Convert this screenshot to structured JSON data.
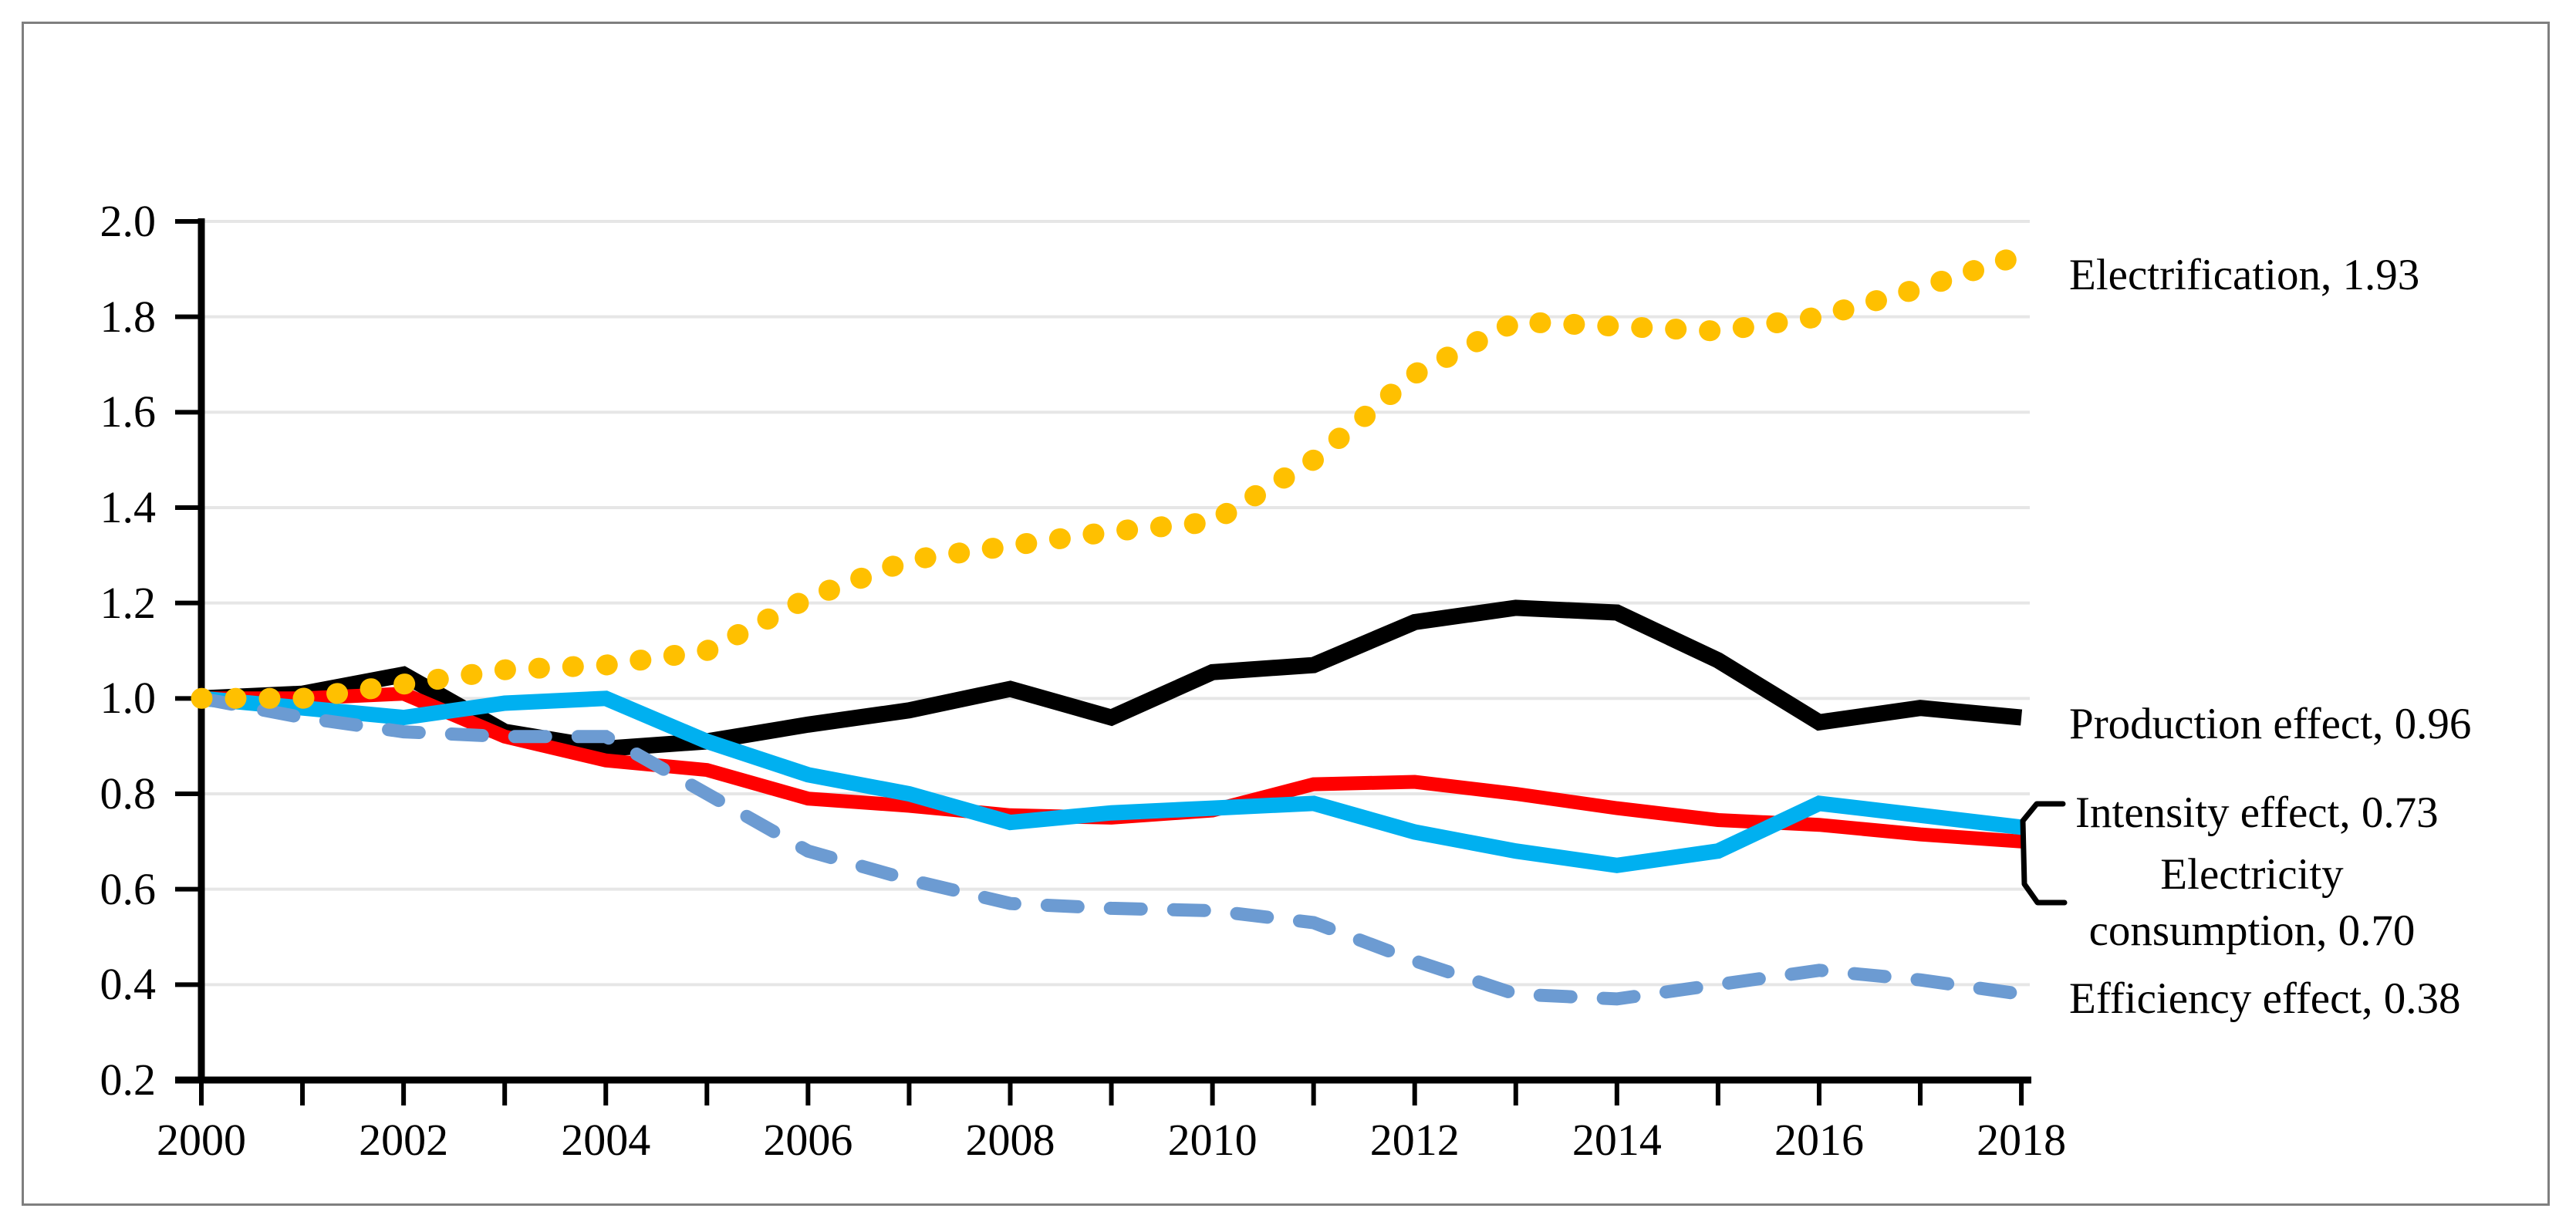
{
  "figure": {
    "background_color": "#FFFFFF",
    "border_color": "#7F7F7F",
    "gridline_color": "#E6E6E6",
    "axis_color": "#000000",
    "text_color": "#000000"
  },
  "chart_data": {
    "type": "line",
    "title": "",
    "xlabel": "",
    "ylabel": "",
    "xlim": [
      2000,
      2018
    ],
    "ylim": [
      0.2,
      2.0
    ],
    "grid": true,
    "legend_position": "annotations-at-line-ends",
    "x": [
      2000,
      2001,
      2002,
      2003,
      2004,
      2005,
      2006,
      2007,
      2008,
      2009,
      2010,
      2011,
      2012,
      2013,
      2014,
      2015,
      2016,
      2017,
      2018
    ],
    "x_tick_labels": [
      "2000",
      "2002",
      "2004",
      "2006",
      "2008",
      "2010",
      "2012",
      "2014",
      "2016",
      "2018"
    ],
    "y_tick_labels": [
      "2.0",
      "1.8",
      "1.6",
      "1.4",
      "1.2",
      "1.0",
      "0.8",
      "0.6",
      "0.4",
      "0.2"
    ],
    "series": [
      {
        "name": "Production effect",
        "label": "Production effect, 0.96",
        "final_value": 0.96,
        "color": "#000000",
        "style": "solid",
        "stroke_width": 21,
        "values": [
          1.0,
          1.01,
          1.05,
          0.93,
          0.895,
          0.91,
          0.945,
          0.975,
          1.02,
          0.96,
          1.055,
          1.07,
          1.16,
          1.19,
          1.18,
          1.08,
          0.95,
          0.98,
          0.96
        ]
      },
      {
        "name": "Electricity consumption",
        "label": "Electricity consumption, 0.70",
        "final_value": 0.7,
        "color": "#FF0000",
        "style": "solid",
        "stroke_width": 18,
        "values": [
          1.0,
          1.0,
          1.01,
          0.92,
          0.87,
          0.85,
          0.79,
          0.775,
          0.755,
          0.75,
          0.765,
          0.82,
          0.825,
          0.8,
          0.77,
          0.745,
          0.735,
          0.715,
          0.7
        ]
      },
      {
        "name": "Intensity effect",
        "label": "Intensity effect, 0.73",
        "final_value": 0.73,
        "color": "#00B0F0",
        "style": "solid",
        "stroke_width": 20,
        "values": [
          1.0,
          0.98,
          0.96,
          0.99,
          1.0,
          0.91,
          0.84,
          0.8,
          0.74,
          0.76,
          0.77,
          0.78,
          0.72,
          0.68,
          0.65,
          0.68,
          0.78,
          0.755,
          0.73
        ]
      },
      {
        "name": "Efficiency effect",
        "label": "Efficiency effect, 0.38",
        "final_value": 0.38,
        "color": "#6C9BD2",
        "style": "dashed",
        "stroke_width": 17,
        "values": [
          1.0,
          0.96,
          0.93,
          0.92,
          0.92,
          0.8,
          0.68,
          0.62,
          0.57,
          0.56,
          0.555,
          0.53,
          0.45,
          0.38,
          0.37,
          0.4,
          0.43,
          0.41,
          0.38
        ]
      },
      {
        "name": "Electrification",
        "label": "Electrification, 1.93",
        "final_value": 1.93,
        "color": "#FFC000",
        "style": "dotted",
        "stroke_width": 27,
        "values": [
          1.0,
          1.0,
          1.03,
          1.06,
          1.07,
          1.1,
          1.21,
          1.29,
          1.32,
          1.35,
          1.37,
          1.5,
          1.68,
          1.79,
          1.78,
          1.77,
          1.8,
          1.86,
          1.93
        ]
      }
    ]
  }
}
